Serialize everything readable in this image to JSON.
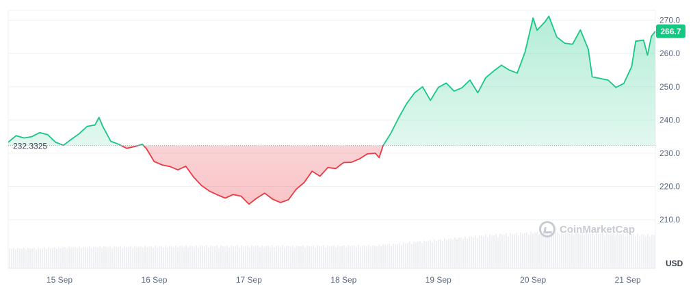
{
  "chart_data": {
    "type": "line",
    "title": "",
    "xlabel": "",
    "ylabel": "USD",
    "currency_label": "USD",
    "ylim": [
      202,
      273
    ],
    "yticks": [
      "270.0",
      "260.0",
      "250.0",
      "240.0",
      "230.0",
      "220.0",
      "210.0"
    ],
    "ytick_values": [
      270,
      260,
      250,
      240,
      230,
      220,
      210
    ],
    "xticks": [
      "15 Sep",
      "16 Sep",
      "17 Sep",
      "18 Sep",
      "19 Sep",
      "20 Sep",
      "21 Sep"
    ],
    "xtick_dates": [
      "2024-09-15",
      "2024-09-16",
      "2024-09-17",
      "2024-09-18",
      "2024-09-19",
      "2024-09-20",
      "2024-09-21"
    ],
    "xlim": [
      "2024-09-14T11:00",
      "2024-09-21T07:00"
    ],
    "baseline": {
      "value": 232.3325,
      "label": "232.3325"
    },
    "last_price": {
      "value": 266.7,
      "label": "266.7"
    },
    "colors": {
      "up": "#16c784",
      "down": "#ea3943",
      "up_fill": "#16c784",
      "down_fill": "#ea3943",
      "badge": "#16c784",
      "grid": "#eef0f3",
      "axis_text": "#58667e",
      "volume": "#eef0f3"
    },
    "grid": true,
    "watermark": "CoinMarketCap",
    "series": [
      {
        "name": "",
        "points": [
          [
            "2024-09-14T11:00",
            233.3
          ],
          [
            "2024-09-14T13:00",
            235.3
          ],
          [
            "2024-09-14T15:00",
            234.6
          ],
          [
            "2024-09-14T17:00",
            235.0
          ],
          [
            "2024-09-14T19:00",
            236.2
          ],
          [
            "2024-09-14T21:00",
            235.6
          ],
          [
            "2024-09-14T23:00",
            233.3
          ],
          [
            "2024-09-15T01:00",
            232.4
          ],
          [
            "2024-09-15T03:00",
            234.2
          ],
          [
            "2024-09-15T05:00",
            235.9
          ],
          [
            "2024-09-15T07:00",
            238.1
          ],
          [
            "2024-09-15T09:00",
            238.5
          ],
          [
            "2024-09-15T10:00",
            240.8
          ],
          [
            "2024-09-15T11:00",
            238.0
          ],
          [
            "2024-09-15T13:00",
            233.6
          ],
          [
            "2024-09-15T15:00",
            232.7
          ],
          [
            "2024-09-15T17:00",
            231.5
          ],
          [
            "2024-09-15T19:00",
            232.0
          ],
          [
            "2024-09-15T21:00",
            232.7
          ],
          [
            "2024-09-15T22:00",
            231.4
          ],
          [
            "2024-09-16T00:00",
            227.5
          ],
          [
            "2024-09-16T02:00",
            226.5
          ],
          [
            "2024-09-16T04:00",
            226.0
          ],
          [
            "2024-09-16T06:00",
            225.0
          ],
          [
            "2024-09-16T08:00",
            226.1
          ],
          [
            "2024-09-16T10:00",
            222.8
          ],
          [
            "2024-09-16T12:00",
            220.3
          ],
          [
            "2024-09-16T14:00",
            218.6
          ],
          [
            "2024-09-16T16:00",
            217.5
          ],
          [
            "2024-09-16T18:00",
            216.5
          ],
          [
            "2024-09-16T20:00",
            217.6
          ],
          [
            "2024-09-16T22:00",
            217.1
          ],
          [
            "2024-09-17T00:00",
            214.7
          ],
          [
            "2024-09-17T02:00",
            216.5
          ],
          [
            "2024-09-17T04:00",
            218.0
          ],
          [
            "2024-09-17T06:00",
            216.2
          ],
          [
            "2024-09-17T08:00",
            215.2
          ],
          [
            "2024-09-17T10:00",
            216.0
          ],
          [
            "2024-09-17T12:00",
            219.2
          ],
          [
            "2024-09-17T14:00",
            221.2
          ],
          [
            "2024-09-17T16:00",
            224.6
          ],
          [
            "2024-09-17T18:00",
            223.1
          ],
          [
            "2024-09-17T20:00",
            225.7
          ],
          [
            "2024-09-17T22:00",
            225.4
          ],
          [
            "2024-09-18T00:00",
            227.2
          ],
          [
            "2024-09-18T02:00",
            227.3
          ],
          [
            "2024-09-18T04:00",
            228.3
          ],
          [
            "2024-09-18T06:00",
            229.8
          ],
          [
            "2024-09-18T08:00",
            230.0
          ],
          [
            "2024-09-18T09:00",
            228.7
          ],
          [
            "2024-09-18T10:00",
            232.3
          ],
          [
            "2024-09-18T12:00",
            236.1
          ],
          [
            "2024-09-18T14:00",
            240.8
          ],
          [
            "2024-09-18T16:00",
            245.0
          ],
          [
            "2024-09-18T18:00",
            248.2
          ],
          [
            "2024-09-18T20:00",
            250.0
          ],
          [
            "2024-09-18T22:00",
            245.9
          ],
          [
            "2024-09-19T00:00",
            249.8
          ],
          [
            "2024-09-19T02:00",
            251.1
          ],
          [
            "2024-09-19T04:00",
            248.7
          ],
          [
            "2024-09-19T06:00",
            249.7
          ],
          [
            "2024-09-19T08:00",
            252.0
          ],
          [
            "2024-09-19T10:00",
            248.2
          ],
          [
            "2024-09-19T12:00",
            252.7
          ],
          [
            "2024-09-19T14:00",
            254.7
          ],
          [
            "2024-09-19T16:00",
            256.5
          ],
          [
            "2024-09-19T18:00",
            255.0
          ],
          [
            "2024-09-19T20:00",
            254.1
          ],
          [
            "2024-09-19T22:00",
            260.5
          ],
          [
            "2024-09-20T00:00",
            270.7
          ],
          [
            "2024-09-20T01:00",
            267.0
          ],
          [
            "2024-09-20T03:00",
            269.5
          ],
          [
            "2024-09-20T04:00",
            271.2
          ],
          [
            "2024-09-20T06:00",
            265.0
          ],
          [
            "2024-09-20T08:00",
            263.1
          ],
          [
            "2024-09-20T10:00",
            262.8
          ],
          [
            "2024-09-20T12:00",
            267.1
          ],
          [
            "2024-09-20T14:00",
            261.3
          ],
          [
            "2024-09-20T15:00",
            253.0
          ],
          [
            "2024-09-20T17:00",
            252.5
          ],
          [
            "2024-09-20T19:00",
            252.0
          ],
          [
            "2024-09-20T21:00",
            249.8
          ],
          [
            "2024-09-20T23:00",
            251.0
          ],
          [
            "2024-09-21T01:00",
            256.1
          ],
          [
            "2024-09-21T02:00",
            263.7
          ],
          [
            "2024-09-21T04:00",
            264.0
          ],
          [
            "2024-09-21T05:00",
            259.5
          ],
          [
            "2024-09-21T06:00",
            265.2
          ],
          [
            "2024-09-21T07:00",
            266.7
          ]
        ]
      }
    ],
    "volume_profile": [
      [
        "2024-09-14T11:00",
        0.55
      ],
      [
        "2024-09-15T12:00",
        0.6
      ],
      [
        "2024-09-16T12:00",
        0.62
      ],
      [
        "2024-09-17T12:00",
        0.62
      ],
      [
        "2024-09-18T08:00",
        0.63
      ],
      [
        "2024-09-18T20:00",
        0.75
      ],
      [
        "2024-09-19T12:00",
        0.92
      ],
      [
        "2024-09-20T00:00",
        1.0
      ],
      [
        "2024-09-20T16:00",
        0.98
      ],
      [
        "2024-09-21T07:00",
        0.92
      ]
    ]
  }
}
